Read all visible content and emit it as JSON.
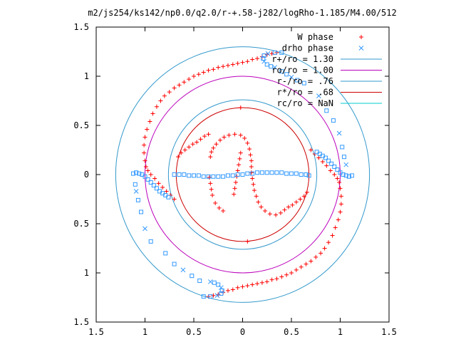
{
  "chart_data": {
    "type": "scatter",
    "title": "m2/js254/ks142/np0.0/q2.0/r-+.58-j282/logRho-1.185/M4.00/512",
    "xlim": [
      -1.5,
      1.5
    ],
    "ylim": [
      -1.5,
      1.5
    ],
    "xticks": [
      -1.5,
      -1,
      -0.5,
      0,
      0.5,
      1,
      1.5
    ],
    "yticks": [
      -1.5,
      -1,
      -0.5,
      0,
      0.5,
      1,
      1.5
    ],
    "xtick_labels": [
      "1.5",
      "1",
      "0.5",
      "0",
      "0.5",
      "1",
      "1.5"
    ],
    "ytick_labels": [
      "1.5",
      "1",
      "0.5",
      "0",
      "0.5",
      "1",
      "1.5"
    ],
    "grid": false,
    "legend_position": "top-right",
    "legend": [
      {
        "label": "W phase",
        "kind": "plus",
        "color": "#ff0000"
      },
      {
        "label": "drho phase",
        "kind": "cross",
        "color": "#3399ff"
      },
      {
        "label": "r+/ro = 1.30",
        "kind": "line",
        "color": "#3399cc"
      },
      {
        "label": "ro/ro = 1.00",
        "kind": "line",
        "color": "#bb00bb"
      },
      {
        "label": "r-/ro = .76",
        "kind": "line",
        "color": "#3399cc"
      },
      {
        "label": "r*/ro = .68",
        "kind": "line",
        "color": "#cc0000"
      },
      {
        "label": "rc/ro = NaN",
        "kind": "line",
        "color": "#00cccc"
      }
    ],
    "circles": [
      {
        "name": "r+/ro",
        "radius": 1.3,
        "color": "#3399cc"
      },
      {
        "name": "ro/ro",
        "radius": 1.0,
        "color": "#bb00bb"
      },
      {
        "name": "r-/ro",
        "radius": 0.76,
        "color": "#3399cc"
      },
      {
        "name": "r*/ro",
        "radius": 0.68,
        "color": "#cc0000"
      }
    ],
    "series": [
      {
        "name": "W phase",
        "marker": "plus",
        "color": "#ff0000",
        "points": [
          [
            -0.33,
            0.18
          ],
          [
            -0.32,
            0.23
          ],
          [
            -0.3,
            0.27
          ],
          [
            -0.27,
            0.31
          ],
          [
            -0.23,
            0.35
          ],
          [
            -0.19,
            0.38
          ],
          [
            -0.14,
            0.4
          ],
          [
            -0.08,
            0.41
          ],
          [
            -0.02,
            0.4
          ],
          [
            0.02,
            0.37
          ],
          [
            0.05,
            0.32
          ],
          [
            0.07,
            0.26
          ],
          [
            0.08,
            0.2
          ],
          [
            0.09,
            0.14
          ],
          [
            0.09,
            0.08
          ],
          [
            0.09,
            0.02
          ],
          [
            0.1,
            -0.04
          ],
          [
            0.11,
            -0.1
          ],
          [
            0.12,
            -0.16
          ],
          [
            0.14,
            -0.22
          ],
          [
            0.16,
            -0.28
          ],
          [
            0.19,
            -0.33
          ],
          [
            0.23,
            -0.37
          ],
          [
            0.28,
            -0.4
          ],
          [
            0.34,
            -0.41
          ],
          [
            0.39,
            -0.39
          ],
          [
            0.43,
            -0.36
          ],
          [
            0.47,
            -0.33
          ],
          [
            0.51,
            -0.31
          ],
          [
            0.55,
            -0.28
          ],
          [
            0.59,
            -0.25
          ],
          [
            0.63,
            -0.22
          ],
          [
            0.66,
            -0.18
          ],
          [
            -0.09,
            -0.2
          ],
          [
            -0.08,
            -0.14
          ],
          [
            -0.07,
            -0.08
          ],
          [
            -0.06,
            -0.02
          ],
          [
            -0.05,
            0.04
          ],
          [
            -0.04,
            0.1
          ],
          [
            -0.03,
            0.16
          ],
          [
            -0.02,
            0.22
          ],
          [
            -0.66,
            0.18
          ],
          [
            -0.63,
            0.22
          ],
          [
            -0.59,
            0.25
          ],
          [
            -0.55,
            0.28
          ],
          [
            -0.51,
            0.31
          ],
          [
            -0.47,
            0.33
          ],
          [
            -0.43,
            0.36
          ],
          [
            -0.39,
            0.39
          ],
          [
            -0.35,
            0.41
          ],
          [
            -0.34,
            -0.03
          ],
          [
            -0.33,
            -0.09
          ],
          [
            -0.32,
            -0.15
          ],
          [
            -0.31,
            -0.21
          ],
          [
            -0.28,
            -0.29
          ],
          [
            -0.24,
            -0.34
          ],
          [
            -0.2,
            -0.37
          ],
          [
            -0.02,
            0.68
          ],
          [
            0.05,
            -0.68
          ],
          [
            0.35,
            1.24
          ],
          [
            0.3,
            1.23
          ],
          [
            0.25,
            1.22
          ],
          [
            0.2,
            1.2
          ],
          [
            0.15,
            1.18
          ],
          [
            0.1,
            1.17
          ],
          [
            0.05,
            1.15
          ],
          [
            0.0,
            1.14
          ],
          [
            -0.05,
            1.13
          ],
          [
            -0.1,
            1.12
          ],
          [
            -0.15,
            1.11
          ],
          [
            -0.2,
            1.1
          ],
          [
            -0.25,
            1.09
          ],
          [
            -0.3,
            1.07
          ],
          [
            -0.35,
            1.06
          ],
          [
            -0.4,
            1.04
          ],
          [
            -0.45,
            1.02
          ],
          [
            -0.5,
            1.0
          ],
          [
            -0.55,
            0.97
          ],
          [
            -0.6,
            0.94
          ],
          [
            -0.65,
            0.91
          ],
          [
            -0.7,
            0.88
          ],
          [
            -0.75,
            0.84
          ],
          [
            -0.8,
            0.8
          ],
          [
            -0.84,
            0.75
          ],
          [
            -0.88,
            0.69
          ],
          [
            -0.92,
            0.62
          ],
          [
            -0.95,
            0.54
          ],
          [
            -0.98,
            0.46
          ],
          [
            -1.0,
            0.38
          ],
          [
            -1.01,
            0.3
          ],
          [
            -1.01,
            0.22
          ],
          [
            -1.0,
            0.14
          ],
          [
            -0.99,
            0.08
          ],
          [
            -0.97,
            0.04
          ],
          [
            -0.94,
            0.0
          ],
          [
            -0.9,
            -0.04
          ],
          [
            -0.86,
            -0.09
          ],
          [
            -0.82,
            -0.13
          ],
          [
            -0.78,
            -0.17
          ],
          [
            -0.74,
            -0.21
          ],
          [
            -0.7,
            -0.25
          ],
          [
            -0.35,
            -1.24
          ],
          [
            -0.3,
            -1.23
          ],
          [
            -0.25,
            -1.22
          ],
          [
            -0.2,
            -1.2
          ],
          [
            -0.15,
            -1.18
          ],
          [
            -0.1,
            -1.17
          ],
          [
            -0.05,
            -1.15
          ],
          [
            0.0,
            -1.14
          ],
          [
            0.05,
            -1.13
          ],
          [
            0.1,
            -1.12
          ],
          [
            0.15,
            -1.11
          ],
          [
            0.2,
            -1.1
          ],
          [
            0.25,
            -1.09
          ],
          [
            0.3,
            -1.07
          ],
          [
            0.35,
            -1.06
          ],
          [
            0.4,
            -1.04
          ],
          [
            0.45,
            -1.02
          ],
          [
            0.5,
            -1.0
          ],
          [
            0.55,
            -0.97
          ],
          [
            0.6,
            -0.94
          ],
          [
            0.65,
            -0.91
          ],
          [
            0.7,
            -0.88
          ],
          [
            0.75,
            -0.84
          ],
          [
            0.8,
            -0.8
          ],
          [
            0.84,
            -0.75
          ],
          [
            0.88,
            -0.69
          ],
          [
            0.92,
            -0.62
          ],
          [
            0.95,
            -0.54
          ],
          [
            0.98,
            -0.46
          ],
          [
            1.0,
            -0.38
          ],
          [
            1.01,
            -0.3
          ],
          [
            1.01,
            -0.22
          ],
          [
            1.0,
            -0.14
          ],
          [
            0.99,
            -0.08
          ],
          [
            0.97,
            -0.04
          ],
          [
            0.94,
            0.0
          ],
          [
            0.9,
            0.04
          ],
          [
            0.86,
            0.09
          ],
          [
            0.82,
            0.13
          ],
          [
            0.78,
            0.17
          ],
          [
            0.74,
            0.21
          ],
          [
            0.7,
            0.25
          ]
        ]
      },
      {
        "name": "drho phase",
        "marker": "mixed",
        "color": "#3399ff",
        "points": [
          [
            -0.7,
            0.0
          ],
          [
            -0.65,
            0.0
          ],
          [
            -0.6,
            0.0
          ],
          [
            -0.55,
            -0.01
          ],
          [
            -0.5,
            -0.01
          ],
          [
            -0.45,
            -0.01
          ],
          [
            -0.4,
            -0.02
          ],
          [
            -0.35,
            -0.02
          ],
          [
            -0.3,
            -0.02
          ],
          [
            -0.25,
            -0.02
          ],
          [
            -0.2,
            -0.02
          ],
          [
            -0.15,
            -0.01
          ],
          [
            -0.1,
            -0.01
          ],
          [
            -0.05,
            0.0
          ],
          [
            0.0,
            0.0
          ],
          [
            0.05,
            0.01
          ],
          [
            0.1,
            0.01
          ],
          [
            0.15,
            0.02
          ],
          [
            0.2,
            0.02
          ],
          [
            0.25,
            0.02
          ],
          [
            0.3,
            0.02
          ],
          [
            0.35,
            0.02
          ],
          [
            0.4,
            0.02
          ],
          [
            0.45,
            0.01
          ],
          [
            0.5,
            0.01
          ],
          [
            0.55,
            0.01
          ],
          [
            0.6,
            0.0
          ],
          [
            0.65,
            0.0
          ],
          [
            0.68,
            -0.01
          ],
          [
            -1.12,
            0.01
          ],
          [
            -1.09,
            0.02
          ],
          [
            -1.06,
            0.01
          ],
          [
            -1.03,
            0.0
          ],
          [
            -1.0,
            -0.02
          ],
          [
            -0.97,
            -0.05
          ],
          [
            -0.94,
            -0.08
          ],
          [
            -0.91,
            -0.11
          ],
          [
            -0.88,
            -0.14
          ],
          [
            -0.85,
            -0.17
          ],
          [
            -0.82,
            -0.19
          ],
          [
            -0.79,
            -0.21
          ],
          [
            -0.76,
            -0.23
          ],
          [
            1.12,
            -0.01
          ],
          [
            1.09,
            -0.02
          ],
          [
            1.06,
            -0.01
          ],
          [
            1.03,
            0.0
          ],
          [
            1.0,
            0.02
          ],
          [
            0.97,
            0.05
          ],
          [
            0.94,
            0.08
          ],
          [
            0.91,
            0.11
          ],
          [
            0.88,
            0.14
          ],
          [
            0.85,
            0.17
          ],
          [
            0.82,
            0.19
          ],
          [
            0.79,
            0.21
          ],
          [
            0.76,
            0.23
          ],
          [
            0.4,
            1.24
          ],
          [
            0.33,
            1.24
          ],
          [
            0.26,
            1.23
          ],
          [
            0.22,
            1.21
          ],
          [
            0.21,
            1.18
          ],
          [
            0.22,
            1.15
          ],
          [
            0.25,
            1.12
          ],
          [
            0.29,
            1.1
          ],
          [
            0.33,
            1.09
          ],
          [
            -0.4,
            -1.24
          ],
          [
            -0.33,
            -1.24
          ],
          [
            -0.26,
            -1.23
          ],
          [
            -0.22,
            -1.21
          ],
          [
            -0.21,
            -1.18
          ],
          [
            -0.22,
            -1.15
          ],
          [
            -0.25,
            -1.12
          ],
          [
            -0.29,
            -1.1
          ],
          [
            -0.33,
            -1.09
          ],
          [
            0.4,
            1.05
          ],
          [
            0.45,
            1.02
          ],
          [
            0.5,
            0.99
          ],
          [
            0.56,
            0.96
          ],
          [
            0.63,
            0.93
          ],
          [
            0.78,
            0.8
          ],
          [
            0.86,
            0.65
          ],
          [
            -1.1,
            -0.1
          ],
          [
            -1.09,
            -0.17
          ],
          [
            -1.07,
            -0.26
          ],
          [
            -1.04,
            -0.38
          ],
          [
            -1.0,
            -0.55
          ],
          [
            -0.94,
            -0.68
          ],
          [
            0.93,
            0.55
          ],
          [
            0.99,
            0.42
          ],
          [
            1.02,
            0.28
          ],
          [
            1.04,
            0.18
          ],
          [
            1.06,
            0.1
          ],
          [
            -0.79,
            -0.8
          ],
          [
            -0.7,
            -0.91
          ],
          [
            -0.61,
            -0.97
          ],
          [
            -0.52,
            -1.03
          ],
          [
            -0.44,
            -1.08
          ]
        ]
      }
    ]
  }
}
